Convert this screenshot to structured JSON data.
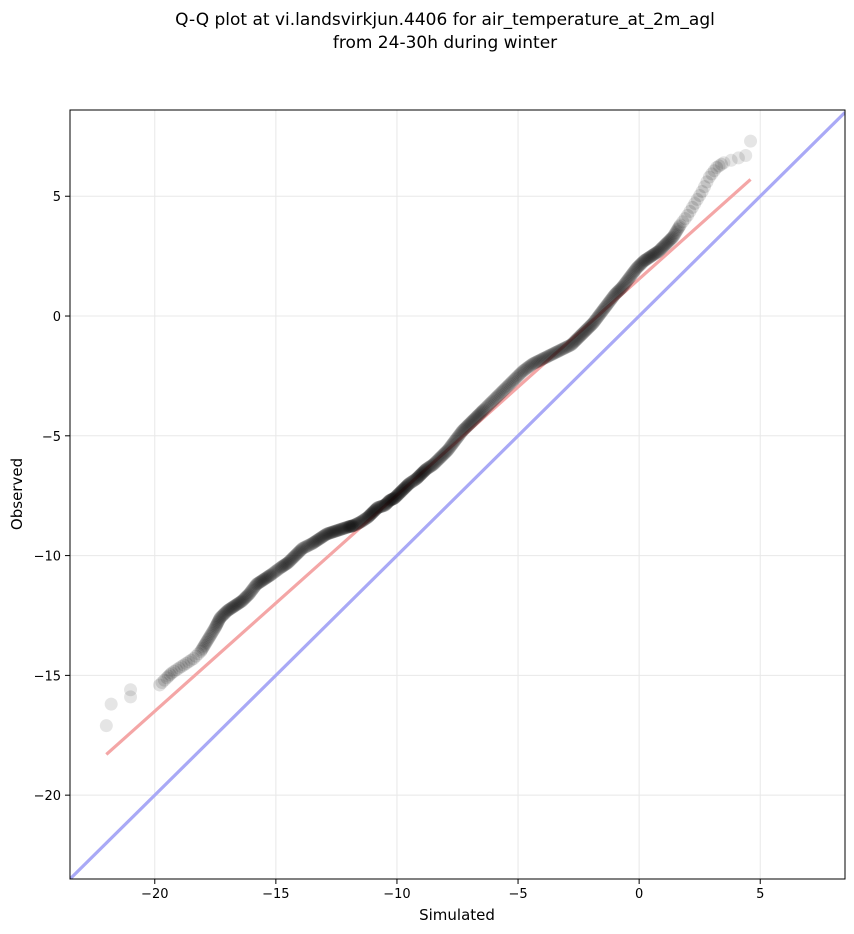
{
  "chart_data": {
    "type": "scatter",
    "title_lines": [
      "Q-Q plot at vi.landsvirkjun.4406 for air_temperature_at_2m_agl",
      "from 24-30h during winter"
    ],
    "xlabel": "Simulated",
    "ylabel": "Observed",
    "xlim": [
      -23.5,
      8.5
    ],
    "ylim": [
      -23.5,
      8.6
    ],
    "xticks": [
      -20,
      -15,
      -10,
      -5,
      0,
      5
    ],
    "yticks": [
      -20,
      -15,
      -10,
      -5,
      0,
      5
    ],
    "grid": true,
    "colors": {
      "points": "#000000",
      "fit_line": "#f4a6a6",
      "identity_line": "#a9a9f6",
      "grid": "#e8e8e8"
    },
    "series": [
      {
        "kind": "quantiles",
        "x": [
          -22.0,
          -21.8,
          -21.0,
          -21.0,
          -19.8,
          -19.5,
          -19.3,
          -19.0,
          -18.7,
          -18.4,
          -18.1,
          -17.8,
          -17.5,
          -17.3,
          -17.0,
          -16.7,
          -16.4,
          -16.1,
          -15.8,
          -15.5,
          -15.2,
          -14.8,
          -14.5,
          -14.2,
          -13.9,
          -13.5,
          -13.2,
          -12.9,
          -12.6,
          -12.3,
          -12.0,
          -11.8,
          -11.5,
          -11.2,
          -11.0,
          -10.8,
          -10.5,
          -10.3,
          -10.1,
          -9.9,
          -9.7,
          -9.5,
          -9.2,
          -9.0,
          -8.8,
          -8.5,
          -8.2,
          -7.9,
          -7.6,
          -7.3,
          -7.0,
          -6.7,
          -6.4,
          -6.0,
          -5.6,
          -5.2,
          -4.8,
          -4.4,
          -4.0,
          -3.6,
          -3.2,
          -2.8,
          -2.5,
          -2.2,
          -1.9,
          -1.6,
          -1.3,
          -1.0,
          -0.7,
          -0.4,
          -0.1,
          0.2,
          0.5,
          0.8,
          1.1,
          1.4,
          1.7,
          2.0,
          2.3,
          2.6,
          2.9,
          3.2,
          3.5,
          3.8,
          4.1,
          4.4,
          4.6
        ],
        "y": [
          -17.1,
          -16.2,
          -15.9,
          -15.6,
          -15.4,
          -15.1,
          -14.9,
          -14.7,
          -14.5,
          -14.3,
          -14.0,
          -13.5,
          -13.0,
          -12.6,
          -12.3,
          -12.1,
          -11.9,
          -11.6,
          -11.2,
          -11.0,
          -10.8,
          -10.5,
          -10.3,
          -10.0,
          -9.7,
          -9.5,
          -9.3,
          -9.1,
          -9.0,
          -8.9,
          -8.8,
          -8.75,
          -8.6,
          -8.4,
          -8.2,
          -8.0,
          -7.9,
          -7.7,
          -7.6,
          -7.4,
          -7.2,
          -7.0,
          -6.8,
          -6.6,
          -6.4,
          -6.2,
          -5.9,
          -5.6,
          -5.2,
          -4.8,
          -4.5,
          -4.2,
          -3.9,
          -3.5,
          -3.1,
          -2.7,
          -2.3,
          -2.0,
          -1.8,
          -1.6,
          -1.4,
          -1.2,
          -0.9,
          -0.6,
          -0.3,
          0.1,
          0.5,
          0.9,
          1.2,
          1.6,
          2.0,
          2.3,
          2.5,
          2.7,
          3.0,
          3.3,
          3.8,
          4.2,
          4.7,
          5.2,
          5.8,
          6.2,
          6.4,
          6.5,
          6.6,
          6.7,
          7.3
        ]
      }
    ],
    "fit_line": {
      "x": [
        -22.0,
        4.6
      ],
      "y": [
        -18.3,
        5.7
      ]
    },
    "identity_line": {
      "x": [
        -23.5,
        8.5
      ],
      "y": [
        -23.5,
        8.5
      ]
    }
  }
}
